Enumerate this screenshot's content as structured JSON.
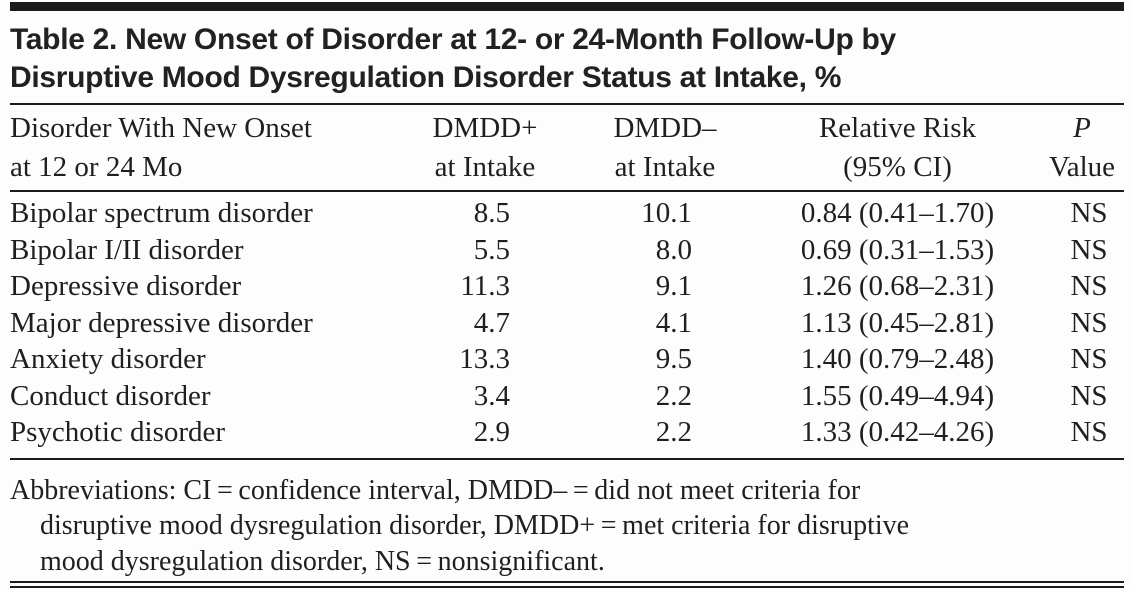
{
  "title": {
    "line1": "Table 2. New Onset of Disorder at 12- or 24-Month Follow-Up by",
    "line2": "Disruptive Mood Dysregulation Disorder Status at Intake, %"
  },
  "table": {
    "header": {
      "col1": {
        "line1": "Disorder With New Onset",
        "line2": "at 12 or 24 Mo"
      },
      "col2": {
        "line1": "DMDD+",
        "line2": "at Intake"
      },
      "col3": {
        "line1": "DMDD–",
        "line2": "at Intake"
      },
      "col4": {
        "line1": "Relative Risk",
        "line2": "(95% CI)"
      },
      "col5": {
        "line1": "P",
        "line2": "Value"
      }
    },
    "rows": [
      {
        "disorder": "Bipolar spectrum disorder",
        "dmdd_plus": "8.5",
        "dmdd_minus": "10.1",
        "relative_risk": "0.84 (0.41–1.70)",
        "p_value": "NS"
      },
      {
        "disorder": "Bipolar I/II disorder",
        "dmdd_plus": "5.5",
        "dmdd_minus": "8.0",
        "relative_risk": "0.69 (0.31–1.53)",
        "p_value": "NS"
      },
      {
        "disorder": "Depressive disorder",
        "dmdd_plus": "11.3",
        "dmdd_minus": "9.1",
        "relative_risk": "1.26 (0.68–2.31)",
        "p_value": "NS"
      },
      {
        "disorder": "Major depressive disorder",
        "dmdd_plus": "4.7",
        "dmdd_minus": "4.1",
        "relative_risk": "1.13 (0.45–2.81)",
        "p_value": "NS"
      },
      {
        "disorder": "Anxiety disorder",
        "dmdd_plus": "13.3",
        "dmdd_minus": "9.5",
        "relative_risk": "1.40 (0.79–2.48)",
        "p_value": "NS"
      },
      {
        "disorder": "Conduct disorder",
        "dmdd_plus": "3.4",
        "dmdd_minus": "2.2",
        "relative_risk": "1.55 (0.49–4.94)",
        "p_value": "NS"
      },
      {
        "disorder": "Psychotic disorder",
        "dmdd_plus": "2.9",
        "dmdd_minus": "2.2",
        "relative_risk": "1.33 (0.42–4.26)",
        "p_value": "NS"
      }
    ]
  },
  "footnote": {
    "lines": [
      "Abbreviations: CI = confidence interval, DMDD– = did not meet criteria for",
      "disruptive mood dysregulation disorder, DMDD+ = met criteria for disruptive",
      "mood dysregulation disorder, NS = nonsignificant."
    ]
  },
  "colors": {
    "ink": "#211f1e",
    "rule": "#1c1b1a",
    "background": "#fdfdfd"
  }
}
